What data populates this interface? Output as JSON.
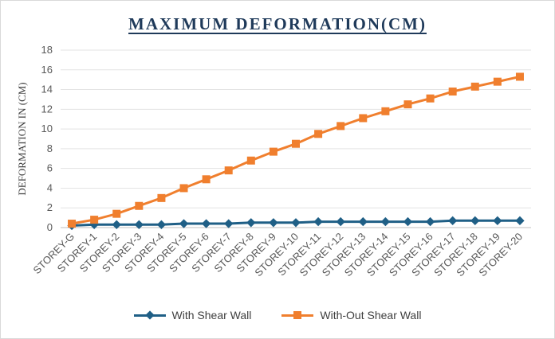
{
  "chart_data": {
    "type": "line",
    "title": "MAXIMUM DEFORMATION(CM)",
    "xlabel": "",
    "ylabel": "DEFORMATION IN (CM)",
    "ylim": [
      0,
      18
    ],
    "yticks": [
      0,
      2,
      4,
      6,
      8,
      10,
      12,
      14,
      16,
      18
    ],
    "grid": true,
    "legend_position": "bottom",
    "categories": [
      "STOREY-G",
      "STOREY-1",
      "STOREY-2",
      "STOREY-3",
      "STOREY-4",
      "STOREY-5",
      "STOREY-6",
      "STOREY-7",
      "STOREY-8",
      "STOREY-9",
      "STOREY-10",
      "STOREY-11",
      "STOREY-12",
      "STOREY-13",
      "STOREY-14",
      "STOREY-15",
      "STOREY-16",
      "STOREY-17",
      "STOREY-18",
      "STOREY-19",
      "STOREY-20"
    ],
    "series": [
      {
        "name": "With Shear Wall",
        "color": "#1f5f86",
        "marker": "diamond",
        "values": [
          0.2,
          0.3,
          0.3,
          0.3,
          0.3,
          0.4,
          0.4,
          0.4,
          0.5,
          0.5,
          0.5,
          0.6,
          0.6,
          0.6,
          0.6,
          0.6,
          0.6,
          0.7,
          0.7,
          0.7,
          0.7
        ]
      },
      {
        "name": "With-Out Shear Wall",
        "color": "#f07f2e",
        "marker": "square",
        "values": [
          0.4,
          0.8,
          1.4,
          2.2,
          3.0,
          4.0,
          4.9,
          5.8,
          6.8,
          7.7,
          8.5,
          9.5,
          10.3,
          11.1,
          11.8,
          12.5,
          13.1,
          13.8,
          14.3,
          14.8,
          15.3
        ]
      }
    ]
  }
}
